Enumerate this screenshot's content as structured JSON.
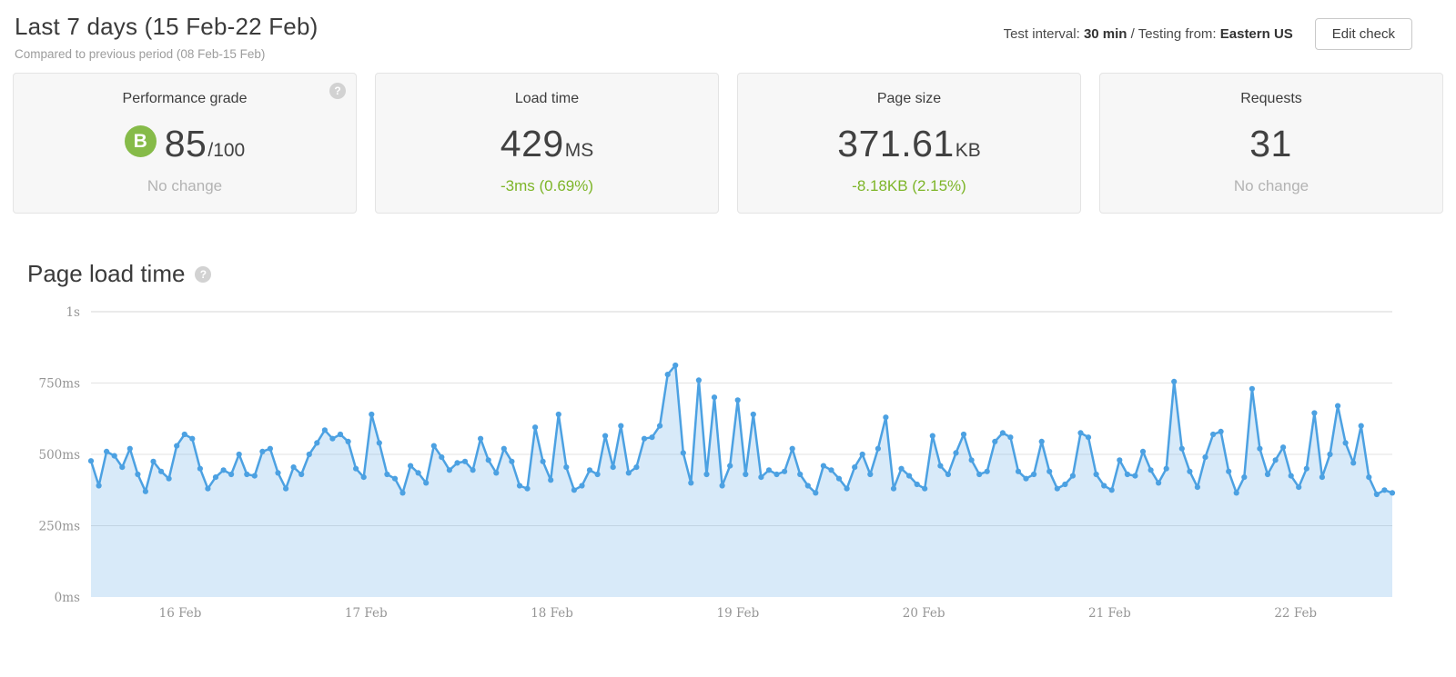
{
  "header": {
    "title": "Last 7 days (15 Feb-22 Feb)",
    "subtitle": "Compared to previous period (08 Feb-15 Feb)",
    "test_interval_label": "Test interval: ",
    "test_interval_value": "30 min",
    "separator": " / ",
    "testing_from_label": "Testing from: ",
    "testing_from_value": "Eastern US",
    "edit_button": "Edit check"
  },
  "stats": [
    {
      "label": "Performance grade",
      "badge": "B",
      "value": "85",
      "suffix": "/100",
      "delta": "No change",
      "delta_color": "gray",
      "has_help": true
    },
    {
      "label": "Load time",
      "value": "429",
      "suffix": "MS",
      "delta": "-3ms (0.69%)",
      "delta_color": "green",
      "has_help": false
    },
    {
      "label": "Page size",
      "value": "371.61",
      "suffix": "KB",
      "delta": "-8.18KB (2.15%)",
      "delta_color": "green",
      "has_help": false
    },
    {
      "label": "Requests",
      "value": "31",
      "suffix": "",
      "delta": "No change",
      "delta_color": "gray",
      "has_help": false
    }
  ],
  "chart": {
    "title": "Page load time"
  },
  "chart_data": {
    "type": "area",
    "title": "Page load time",
    "unit": "ms",
    "ylim": [
      0,
      1000
    ],
    "grid": true,
    "yticks": [
      {
        "v": 1000,
        "label": "1s"
      },
      {
        "v": 750,
        "label": "750ms"
      },
      {
        "v": 500,
        "label": "500ms"
      },
      {
        "v": 250,
        "label": "250ms"
      },
      {
        "v": 0,
        "label": "0ms"
      }
    ],
    "xtick_labels": [
      "16 Feb",
      "17 Feb",
      "18 Feb",
      "19 Feb",
      "20 Feb",
      "21 Feb",
      "22 Feb"
    ],
    "points_per_day": 24,
    "values": [
      477,
      390,
      510,
      495,
      455,
      520,
      430,
      370,
      475,
      440,
      415,
      530,
      570,
      555,
      450,
      380,
      420,
      445,
      430,
      500,
      430,
      425,
      510,
      520,
      435,
      380,
      455,
      430,
      500,
      540,
      585,
      555,
      570,
      545,
      450,
      420,
      640,
      540,
      430,
      415,
      365,
      460,
      435,
      400,
      530,
      490,
      445,
      470,
      475,
      445,
      555,
      480,
      435,
      520,
      475,
      390,
      380,
      595,
      475,
      410,
      640,
      455,
      375,
      390,
      445,
      430,
      565,
      455,
      600,
      435,
      455,
      555,
      560,
      600,
      780,
      812,
      505,
      400,
      760,
      430,
      700,
      390,
      460,
      690,
      430,
      640,
      420,
      445,
      430,
      440,
      520,
      430,
      390,
      365,
      460,
      445,
      415,
      380,
      455,
      500,
      430,
      520,
      630,
      380,
      450,
      425,
      395,
      380,
      565,
      460,
      430,
      505,
      570,
      480,
      430,
      440,
      545,
      575,
      560,
      440,
      415,
      430,
      545,
      440,
      380,
      395,
      425,
      575,
      560,
      430,
      390,
      375,
      480,
      430,
      425,
      510,
      445,
      400,
      450,
      755,
      520,
      440,
      385,
      490,
      570,
      580,
      440,
      365,
      420,
      730,
      520,
      430,
      480,
      525,
      425,
      385,
      450,
      645,
      420,
      500,
      670,
      540,
      470,
      600,
      420,
      360,
      375,
      365
    ]
  },
  "colors": {
    "green": "#7db528",
    "gray": "#b3b3b3",
    "badge_green": "#86bb49",
    "chart_line": "#4ca1e2",
    "chart_fill_opacity": "0.22",
    "grid_line": "#e3e3e3",
    "grid_line_top": "#d6d6d6"
  }
}
